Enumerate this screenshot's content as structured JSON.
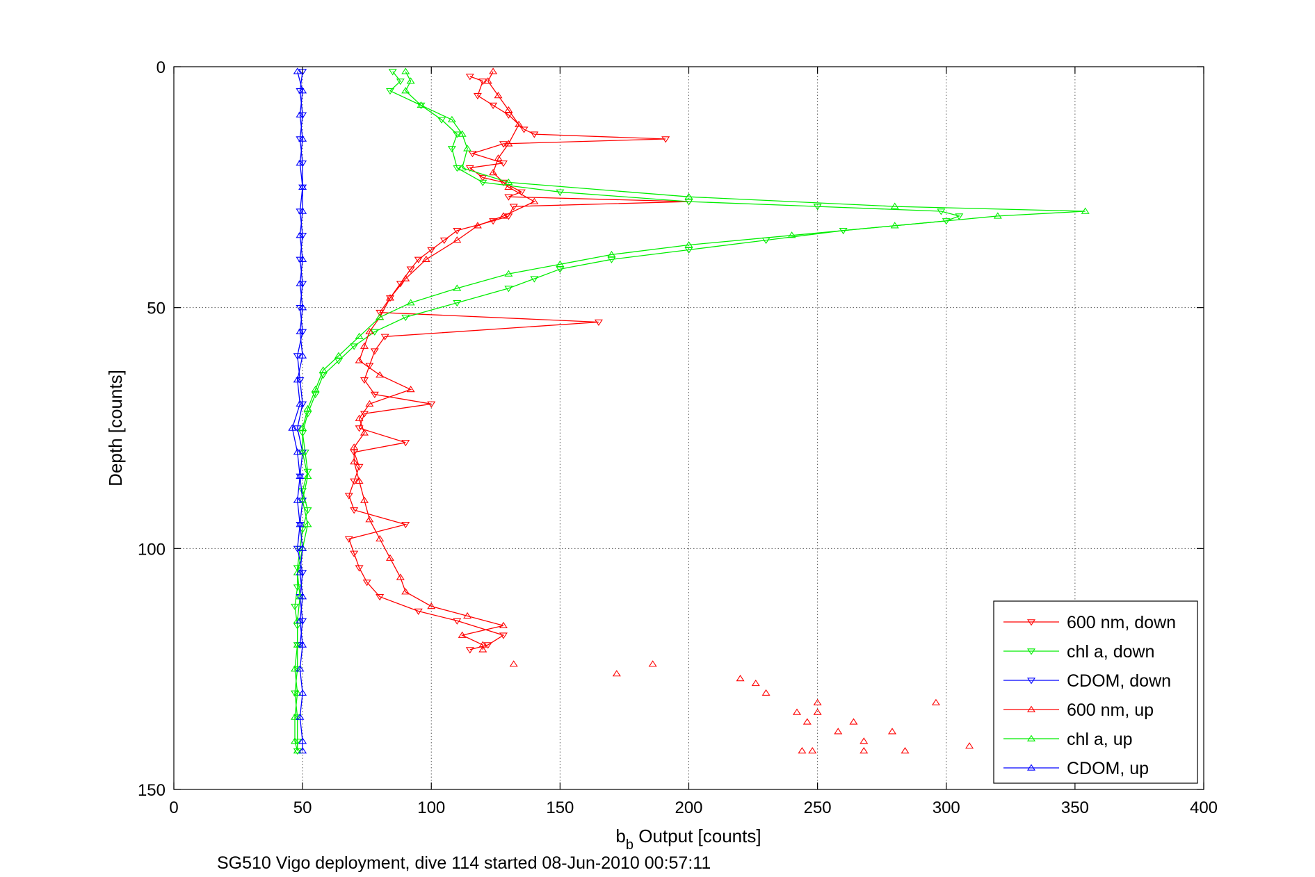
{
  "chart_data": {
    "type": "line",
    "title": "",
    "xlabel": "b",
    "xlabel_subscript": "b",
    "xlabel_suffix": " Output [counts]",
    "ylabel": "Depth [counts]",
    "footer": "SG510 Vigo deployment, dive 114 started 08-Jun-2010 00:57:11",
    "xlim": [
      0,
      400
    ],
    "ylim": [
      0,
      150
    ],
    "y_reversed": true,
    "grid": true,
    "legend_position": "bottom-right",
    "x_ticks": [
      0,
      50,
      100,
      150,
      200,
      250,
      300,
      350,
      400
    ],
    "y_ticks": [
      0,
      50,
      100,
      150
    ],
    "x_tick_labels": [
      "0",
      "50",
      "100",
      "150",
      "200",
      "250",
      "300",
      "350",
      "400"
    ],
    "y_tick_labels": [
      "0",
      "50",
      "100",
      "150"
    ],
    "series": [
      {
        "name": "600 nm, down",
        "color": "#ff0000",
        "marker": "triangle-down",
        "points": [
          [
            115,
            2
          ],
          [
            120,
            3
          ],
          [
            118,
            6
          ],
          [
            124,
            8
          ],
          [
            130,
            10
          ],
          [
            136,
            13
          ],
          [
            140,
            14
          ],
          [
            191,
            15
          ],
          [
            128,
            16
          ],
          [
            116,
            18
          ],
          [
            128,
            20
          ],
          [
            115,
            21
          ],
          [
            120,
            23
          ],
          [
            128,
            24
          ],
          [
            135,
            26
          ],
          [
            130,
            27
          ],
          [
            200,
            28
          ],
          [
            132,
            29
          ],
          [
            130,
            31
          ],
          [
            124,
            32
          ],
          [
            110,
            34
          ],
          [
            105,
            36
          ],
          [
            100,
            38
          ],
          [
            95,
            40
          ],
          [
            92,
            42
          ],
          [
            88,
            45
          ],
          [
            84,
            48
          ],
          [
            80,
            51
          ],
          [
            165,
            53
          ],
          [
            82,
            56
          ],
          [
            78,
            59
          ],
          [
            76,
            62
          ],
          [
            74,
            65
          ],
          [
            78,
            68
          ],
          [
            100,
            70
          ],
          [
            74,
            72
          ],
          [
            72,
            75
          ],
          [
            90,
            78
          ],
          [
            70,
            80
          ],
          [
            72,
            83
          ],
          [
            70,
            86
          ],
          [
            68,
            89
          ],
          [
            70,
            92
          ],
          [
            90,
            95
          ],
          [
            68,
            98
          ],
          [
            70,
            101
          ],
          [
            72,
            104
          ],
          [
            75,
            107
          ],
          [
            80,
            110
          ],
          [
            95,
            113
          ],
          [
            110,
            115
          ],
          [
            128,
            118
          ],
          [
            122,
            120
          ],
          [
            115,
            121
          ]
        ]
      },
      {
        "name": "chl a, down",
        "color": "#00ee00",
        "marker": "triangle-down",
        "points": [
          [
            85,
            1
          ],
          [
            88,
            3
          ],
          [
            84,
            5
          ],
          [
            96,
            8
          ],
          [
            104,
            11
          ],
          [
            110,
            14
          ],
          [
            108,
            17
          ],
          [
            110,
            21
          ],
          [
            120,
            24
          ],
          [
            150,
            26
          ],
          [
            200,
            28
          ],
          [
            250,
            29
          ],
          [
            298,
            30
          ],
          [
            305,
            31
          ],
          [
            300,
            32
          ],
          [
            260,
            34
          ],
          [
            230,
            36
          ],
          [
            200,
            38
          ],
          [
            170,
            40
          ],
          [
            150,
            42
          ],
          [
            140,
            44
          ],
          [
            130,
            46
          ],
          [
            110,
            49
          ],
          [
            90,
            52
          ],
          [
            78,
            55
          ],
          [
            70,
            58
          ],
          [
            64,
            61
          ],
          [
            58,
            64
          ],
          [
            55,
            68
          ],
          [
            52,
            72
          ],
          [
            50,
            76
          ],
          [
            51,
            80
          ],
          [
            52,
            84
          ],
          [
            50,
            88
          ],
          [
            52,
            92
          ],
          [
            50,
            96
          ],
          [
            49,
            100
          ],
          [
            48,
            104
          ],
          [
            48,
            108
          ],
          [
            47,
            112
          ],
          [
            48,
            116
          ],
          [
            48,
            120
          ],
          [
            48,
            125
          ],
          [
            47,
            130
          ],
          [
            48,
            135
          ],
          [
            48,
            140
          ],
          [
            48,
            142
          ]
        ]
      },
      {
        "name": "CDOM, down",
        "color": "#0000ff",
        "marker": "triangle-down",
        "points": [
          [
            50,
            1
          ],
          [
            49,
            5
          ],
          [
            50,
            10
          ],
          [
            49,
            15
          ],
          [
            50,
            20
          ],
          [
            50,
            25
          ],
          [
            49,
            30
          ],
          [
            50,
            35
          ],
          [
            49,
            40
          ],
          [
            50,
            45
          ],
          [
            49,
            50
          ],
          [
            50,
            55
          ],
          [
            48,
            60
          ],
          [
            49,
            65
          ],
          [
            50,
            70
          ],
          [
            48,
            75
          ],
          [
            50,
            80
          ],
          [
            49,
            85
          ],
          [
            50,
            90
          ],
          [
            49,
            95
          ],
          [
            48,
            100
          ],
          [
            50,
            105
          ],
          [
            49,
            110
          ],
          [
            50,
            115
          ],
          [
            49,
            120
          ]
        ]
      },
      {
        "name": "600 nm, up",
        "color": "#ff0000",
        "marker": "triangle-up",
        "points": [
          [
            124,
            1
          ],
          [
            122,
            3
          ],
          [
            126,
            6
          ],
          [
            130,
            9
          ],
          [
            134,
            12
          ],
          [
            130,
            16
          ],
          [
            126,
            19
          ],
          [
            124,
            22
          ],
          [
            130,
            25
          ],
          [
            140,
            28
          ],
          [
            128,
            31
          ],
          [
            118,
            33
          ],
          [
            110,
            36
          ],
          [
            98,
            40
          ],
          [
            90,
            44
          ],
          [
            84,
            48
          ],
          [
            80,
            52
          ],
          [
            76,
            55
          ],
          [
            74,
            58
          ],
          [
            72,
            61
          ],
          [
            80,
            64
          ],
          [
            92,
            67
          ],
          [
            76,
            70
          ],
          [
            72,
            73
          ],
          [
            74,
            76
          ],
          [
            70,
            79
          ],
          [
            70,
            82
          ],
          [
            72,
            86
          ],
          [
            74,
            90
          ],
          [
            76,
            94
          ],
          [
            80,
            98
          ],
          [
            84,
            102
          ],
          [
            88,
            106
          ],
          [
            90,
            109
          ],
          [
            100,
            112
          ],
          [
            114,
            114
          ],
          [
            128,
            116
          ],
          [
            112,
            118
          ],
          [
            120,
            120
          ],
          [
            120,
            121
          ]
        ],
        "scatter_points": [
          [
            132,
            124
          ],
          [
            186,
            124
          ],
          [
            172,
            126
          ],
          [
            220,
            127
          ],
          [
            226,
            128
          ],
          [
            230,
            130
          ],
          [
            242,
            134
          ],
          [
            250,
            132
          ],
          [
            250,
            134
          ],
          [
            246,
            136
          ],
          [
            264,
            136
          ],
          [
            258,
            138
          ],
          [
            279,
            138
          ],
          [
            268,
            140
          ],
          [
            296,
            132
          ],
          [
            244,
            142
          ],
          [
            248,
            142
          ],
          [
            268,
            142
          ],
          [
            284,
            142
          ],
          [
            309,
            141
          ]
        ]
      },
      {
        "name": "chl a, up",
        "color": "#00ee00",
        "marker": "triangle-up",
        "points": [
          [
            90,
            1
          ],
          [
            92,
            3
          ],
          [
            90,
            5
          ],
          [
            96,
            8
          ],
          [
            108,
            11
          ],
          [
            112,
            14
          ],
          [
            114,
            17
          ],
          [
            112,
            21
          ],
          [
            130,
            24
          ],
          [
            200,
            27
          ],
          [
            280,
            29
          ],
          [
            354,
            30
          ],
          [
            320,
            31
          ],
          [
            280,
            33
          ],
          [
            240,
            35
          ],
          [
            200,
            37
          ],
          [
            170,
            39
          ],
          [
            150,
            41
          ],
          [
            130,
            43
          ],
          [
            110,
            46
          ],
          [
            92,
            49
          ],
          [
            80,
            52
          ],
          [
            72,
            56
          ],
          [
            64,
            60
          ],
          [
            58,
            63
          ],
          [
            55,
            67
          ],
          [
            52,
            71
          ],
          [
            50,
            75
          ],
          [
            50,
            80
          ],
          [
            52,
            85
          ],
          [
            50,
            90
          ],
          [
            52,
            95
          ],
          [
            50,
            100
          ],
          [
            48,
            105
          ],
          [
            49,
            110
          ],
          [
            48,
            115
          ],
          [
            48,
            120
          ],
          [
            47,
            125
          ],
          [
            48,
            130
          ],
          [
            47,
            135
          ],
          [
            47,
            140
          ],
          [
            48,
            142
          ]
        ]
      },
      {
        "name": "CDOM, up",
        "color": "#0000ff",
        "marker": "triangle-up",
        "points": [
          [
            48,
            1
          ],
          [
            50,
            5
          ],
          [
            49,
            10
          ],
          [
            50,
            15
          ],
          [
            49,
            20
          ],
          [
            50,
            25
          ],
          [
            50,
            30
          ],
          [
            49,
            35
          ],
          [
            50,
            40
          ],
          [
            49,
            45
          ],
          [
            50,
            50
          ],
          [
            49,
            55
          ],
          [
            50,
            60
          ],
          [
            48,
            65
          ],
          [
            49,
            70
          ],
          [
            46,
            75
          ],
          [
            48,
            80
          ],
          [
            49,
            85
          ],
          [
            48,
            90
          ],
          [
            49,
            95
          ],
          [
            50,
            100
          ],
          [
            49,
            105
          ],
          [
            50,
            110
          ],
          [
            49,
            115
          ],
          [
            50,
            120
          ],
          [
            49,
            125
          ],
          [
            50,
            130
          ],
          [
            49,
            135
          ],
          [
            50,
            140
          ],
          [
            50,
            142
          ]
        ]
      }
    ]
  }
}
